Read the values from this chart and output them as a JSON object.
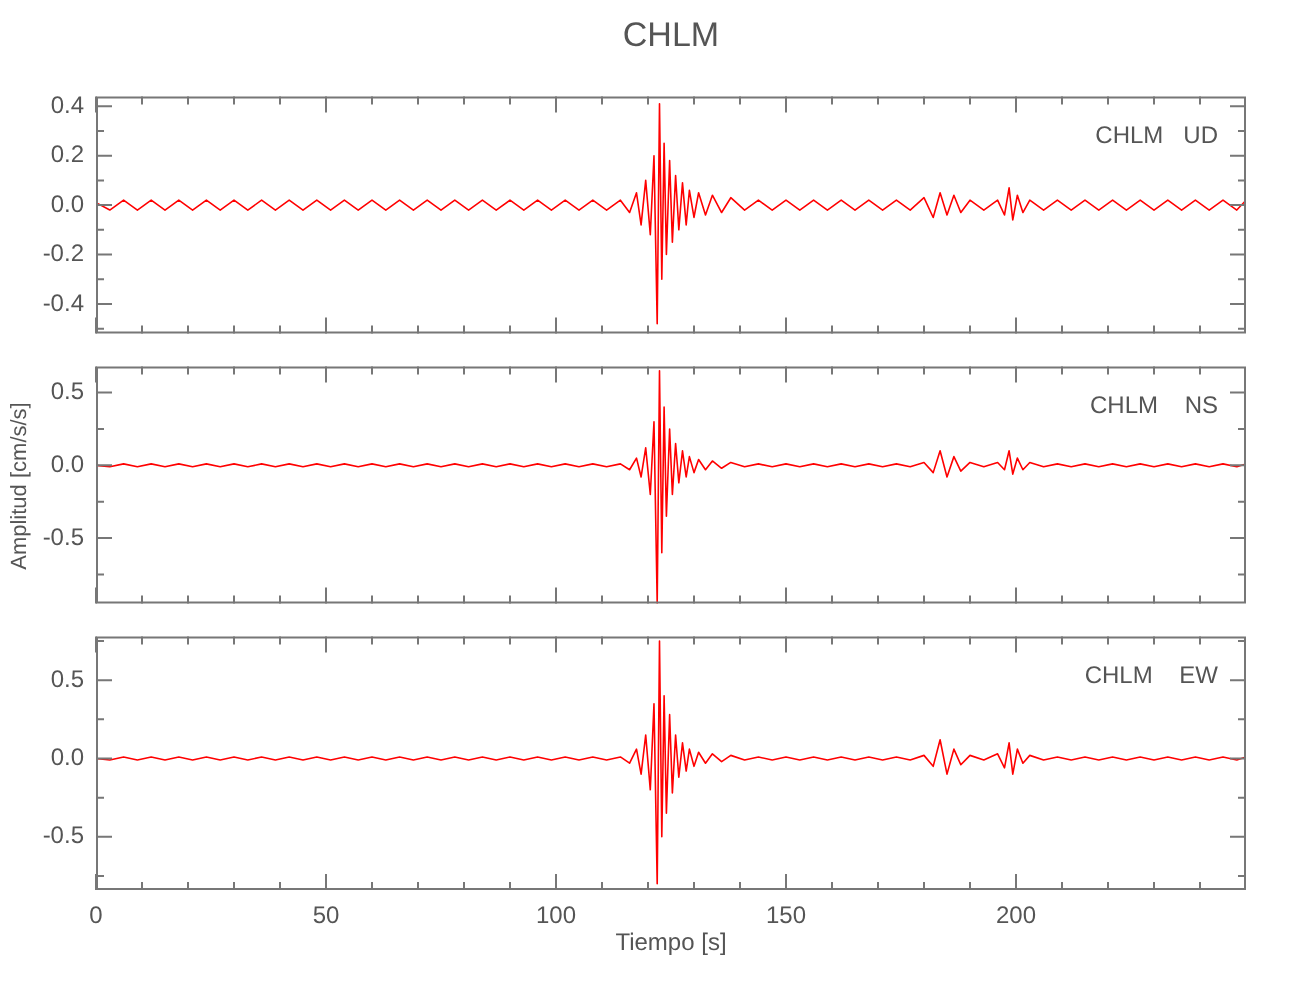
{
  "chart_data": [
    {
      "type": "line",
      "title": "CHLM",
      "annotations": [
        "CHLM   UD"
      ],
      "color": "#ff0000",
      "tick_labels": "y",
      "xlim": [
        0,
        250
      ],
      "xticks": [
        0,
        {
          "value": 10,
          "label": null
        },
        {
          "value": 20,
          "label": null
        },
        {
          "value": 30,
          "label": null
        },
        {
          "value": 40,
          "label": null
        },
        50,
        {
          "value": 60,
          "label": null
        },
        {
          "value": 70,
          "label": null
        },
        {
          "value": 80,
          "label": null
        },
        {
          "value": 90,
          "label": null
        },
        100,
        {
          "value": 110,
          "label": null
        },
        {
          "value": 120,
          "label": null
        },
        {
          "value": 130,
          "label": null
        },
        {
          "value": 140,
          "label": null
        },
        150,
        {
          "value": 160,
          "label": null
        },
        {
          "value": 170,
          "label": null
        },
        {
          "value": 180,
          "label": null
        },
        {
          "value": 190,
          "label": null
        },
        200,
        {
          "value": 210,
          "label": null
        },
        {
          "value": 220,
          "label": null
        },
        {
          "value": 230,
          "label": null
        },
        {
          "value": 240,
          "label": null
        }
      ],
      "ylim": [
        -0.52,
        0.44
      ],
      "yticks": [
        {
          "value": -0.5,
          "label": null
        },
        -0.4,
        {
          "value": -0.3,
          "label": null
        },
        -0.2,
        {
          "value": -0.1,
          "label": null
        },
        {
          "value": 0,
          "label": "0.0"
        },
        {
          "value": 0.1,
          "label": null
        },
        0.2,
        {
          "value": 0.3,
          "label": null
        },
        0.4
      ],
      "x": [
        0,
        3,
        6,
        9,
        12,
        15,
        18,
        21,
        24,
        27,
        30,
        33,
        36,
        39,
        42,
        45,
        48,
        51,
        54,
        57,
        60,
        63,
        66,
        69,
        72,
        75,
        78,
        81,
        84,
        87,
        90,
        93,
        96,
        99,
        102,
        105,
        108,
        111,
        114,
        116,
        117.5,
        118.5,
        119.5,
        120.5,
        121.3,
        122,
        122.5,
        123,
        123.5,
        124,
        124.7,
        125.3,
        126,
        126.7,
        127.5,
        128.3,
        129,
        130,
        131,
        132.5,
        134,
        136,
        138,
        141,
        144,
        147,
        150,
        153,
        156,
        159,
        162,
        165,
        168,
        171,
        174,
        177,
        180,
        182,
        183.5,
        185,
        186.5,
        188,
        190,
        193,
        196,
        197.5,
        198.5,
        199.3,
        200.3,
        201.5,
        203,
        206,
        209,
        212,
        215,
        218,
        221,
        224,
        227,
        230,
        233,
        236,
        239,
        242,
        245,
        248,
        250
      ],
      "values": [
        0.01,
        -0.02,
        0.02,
        -0.02,
        0.02,
        -0.02,
        0.02,
        -0.02,
        0.02,
        -0.02,
        0.02,
        -0.02,
        0.02,
        -0.02,
        0.02,
        -0.02,
        0.02,
        -0.02,
        0.02,
        -0.02,
        0.02,
        -0.02,
        0.02,
        -0.02,
        0.02,
        -0.02,
        0.02,
        -0.02,
        0.02,
        -0.02,
        0.02,
        -0.02,
        0.02,
        -0.02,
        0.02,
        -0.02,
        0.02,
        -0.02,
        0.02,
        -0.03,
        0.05,
        -0.08,
        0.1,
        -0.12,
        0.2,
        -0.48,
        0.41,
        -0.3,
        0.25,
        -0.2,
        0.18,
        -0.15,
        0.12,
        -0.1,
        0.09,
        -0.08,
        0.06,
        -0.05,
        0.05,
        -0.04,
        0.04,
        -0.03,
        0.03,
        -0.02,
        0.02,
        -0.02,
        0.02,
        -0.02,
        0.02,
        -0.02,
        0.02,
        -0.02,
        0.02,
        -0.02,
        0.02,
        -0.02,
        0.03,
        -0.05,
        0.05,
        -0.04,
        0.04,
        -0.03,
        0.02,
        -0.02,
        0.02,
        -0.04,
        0.07,
        -0.06,
        0.04,
        -0.03,
        0.02,
        -0.02,
        0.02,
        -0.02,
        0.02,
        -0.02,
        0.02,
        -0.02,
        0.02,
        -0.02,
        0.02,
        -0.02,
        0.02,
        -0.02,
        0.02,
        -0.02,
        0.02
      ]
    },
    {
      "type": "line",
      "ylabel": "Amplitud  [cm/s/s]",
      "annotations": [
        "CHLM    NS"
      ],
      "color": "#ff0000",
      "tick_labels": "y",
      "xlim": [
        0,
        250
      ],
      "xticks": [
        0,
        {
          "value": 10,
          "label": null
        },
        {
          "value": 20,
          "label": null
        },
        {
          "value": 30,
          "label": null
        },
        {
          "value": 40,
          "label": null
        },
        50,
        {
          "value": 60,
          "label": null
        },
        {
          "value": 70,
          "label": null
        },
        {
          "value": 80,
          "label": null
        },
        {
          "value": 90,
          "label": null
        },
        100,
        {
          "value": 110,
          "label": null
        },
        {
          "value": 120,
          "label": null
        },
        {
          "value": 130,
          "label": null
        },
        {
          "value": 140,
          "label": null
        },
        150,
        {
          "value": 160,
          "label": null
        },
        {
          "value": 170,
          "label": null
        },
        {
          "value": 180,
          "label": null
        },
        {
          "value": 190,
          "label": null
        },
        200,
        {
          "value": 210,
          "label": null
        },
        {
          "value": 220,
          "label": null
        },
        {
          "value": 230,
          "label": null
        },
        {
          "value": 240,
          "label": null
        }
      ],
      "ylim": [
        -0.95,
        0.68
      ],
      "yticks": [
        {
          "value": -0.75,
          "label": null
        },
        -0.5,
        {
          "value": -0.25,
          "label": null
        },
        {
          "value": 0,
          "label": "0.0"
        },
        {
          "value": 0.25,
          "label": null
        },
        0.5
      ],
      "x": [
        0,
        3,
        6,
        9,
        12,
        15,
        18,
        21,
        24,
        27,
        30,
        33,
        36,
        39,
        42,
        45,
        48,
        51,
        54,
        57,
        60,
        63,
        66,
        69,
        72,
        75,
        78,
        81,
        84,
        87,
        90,
        93,
        96,
        99,
        102,
        105,
        108,
        111,
        114,
        116,
        117.5,
        118.5,
        119.5,
        120.5,
        121.3,
        122,
        122.5,
        123,
        123.5,
        124,
        124.7,
        125.3,
        126,
        126.7,
        127.5,
        128.3,
        129,
        130,
        131,
        132.5,
        134,
        136,
        138,
        141,
        144,
        147,
        150,
        153,
        156,
        159,
        162,
        165,
        168,
        171,
        174,
        177,
        180,
        182,
        183.5,
        185,
        186.5,
        188,
        190,
        193,
        196,
        197.5,
        198.5,
        199.3,
        200.3,
        201.5,
        203,
        206,
        209,
        212,
        215,
        218,
        221,
        224,
        227,
        230,
        233,
        236,
        239,
        242,
        245,
        248,
        250
      ],
      "values": [
        0,
        -0.01,
        0.01,
        -0.01,
        0.01,
        -0.01,
        0.01,
        -0.01,
        0.01,
        -0.01,
        0.01,
        -0.01,
        0.01,
        -0.01,
        0.01,
        -0.01,
        0.01,
        -0.01,
        0.01,
        -0.01,
        0.01,
        -0.01,
        0.01,
        -0.01,
        0.01,
        -0.01,
        0.01,
        -0.01,
        0.01,
        -0.01,
        0.01,
        -0.01,
        0.01,
        -0.01,
        0.01,
        -0.01,
        0.01,
        -0.01,
        0.01,
        -0.03,
        0.05,
        -0.08,
        0.12,
        -0.2,
        0.3,
        -0.95,
        0.65,
        -0.6,
        0.4,
        -0.35,
        0.25,
        -0.2,
        0.15,
        -0.12,
        0.1,
        -0.08,
        0.06,
        -0.05,
        0.04,
        -0.03,
        0.03,
        -0.02,
        0.02,
        -0.01,
        0.01,
        -0.01,
        0.01,
        -0.01,
        0.01,
        -0.01,
        0.01,
        -0.01,
        0.01,
        -0.01,
        0.01,
        -0.01,
        0.02,
        -0.05,
        0.1,
        -0.08,
        0.06,
        -0.04,
        0.02,
        -0.01,
        0.02,
        -0.03,
        0.1,
        -0.06,
        0.05,
        -0.03,
        0.02,
        -0.01,
        0.01,
        -0.01,
        0.01,
        -0.01,
        0.01,
        -0.01,
        0.01,
        -0.01,
        0.01,
        -0.01,
        0.01,
        -0.01,
        0.01,
        -0.01,
        0.01
      ]
    },
    {
      "type": "line",
      "xlabel": "Tiempo  [s]",
      "annotations": [
        "CHLM    EW"
      ],
      "color": "#ff0000",
      "xlim": [
        0,
        250
      ],
      "xticks": [
        0,
        {
          "value": 10,
          "label": null
        },
        {
          "value": 20,
          "label": null
        },
        {
          "value": 30,
          "label": null
        },
        {
          "value": 40,
          "label": null
        },
        50,
        {
          "value": 60,
          "label": null
        },
        {
          "value": 70,
          "label": null
        },
        {
          "value": 80,
          "label": null
        },
        {
          "value": 90,
          "label": null
        },
        100,
        {
          "value": 110,
          "label": null
        },
        {
          "value": 120,
          "label": null
        },
        {
          "value": 130,
          "label": null
        },
        {
          "value": 140,
          "label": null
        },
        150,
        {
          "value": 160,
          "label": null
        },
        {
          "value": 170,
          "label": null
        },
        {
          "value": 180,
          "label": null
        },
        {
          "value": 190,
          "label": null
        },
        200,
        {
          "value": 210,
          "label": null
        },
        {
          "value": 220,
          "label": null
        },
        {
          "value": 230,
          "label": null
        },
        {
          "value": 240,
          "label": null
        }
      ],
      "ylim": [
        -0.84,
        0.78
      ],
      "yticks": [
        {
          "value": -0.75,
          "label": null
        },
        -0.5,
        {
          "value": -0.25,
          "label": null
        },
        {
          "value": 0,
          "label": "0.0"
        },
        {
          "value": 0.25,
          "label": null
        },
        0.5,
        {
          "value": 0.75,
          "label": null
        }
      ],
      "x": [
        0,
        3,
        6,
        9,
        12,
        15,
        18,
        21,
        24,
        27,
        30,
        33,
        36,
        39,
        42,
        45,
        48,
        51,
        54,
        57,
        60,
        63,
        66,
        69,
        72,
        75,
        78,
        81,
        84,
        87,
        90,
        93,
        96,
        99,
        102,
        105,
        108,
        111,
        114,
        116,
        117.5,
        118.5,
        119.5,
        120.5,
        121.3,
        122,
        122.5,
        123,
        123.5,
        124,
        124.7,
        125.3,
        126,
        126.7,
        127.5,
        128.3,
        129,
        130,
        131,
        132.5,
        134,
        136,
        138,
        141,
        144,
        147,
        150,
        153,
        156,
        159,
        162,
        165,
        168,
        171,
        174,
        177,
        180,
        182,
        183.5,
        185,
        186.5,
        188,
        190,
        193,
        196,
        197.5,
        198.5,
        199.3,
        200.3,
        201.5,
        203,
        206,
        209,
        212,
        215,
        218,
        221,
        224,
        227,
        230,
        233,
        236,
        239,
        242,
        245,
        248,
        250
      ],
      "values": [
        0,
        -0.01,
        0.01,
        -0.01,
        0.01,
        -0.01,
        0.01,
        -0.01,
        0.01,
        -0.01,
        0.01,
        -0.01,
        0.01,
        -0.01,
        0.01,
        -0.01,
        0.01,
        -0.01,
        0.01,
        -0.01,
        0.01,
        -0.01,
        0.01,
        -0.01,
        0.01,
        -0.01,
        0.01,
        -0.01,
        0.01,
        -0.01,
        0.01,
        -0.01,
        0.01,
        -0.01,
        0.01,
        -0.01,
        0.01,
        -0.01,
        0.01,
        -0.03,
        0.06,
        -0.1,
        0.15,
        -0.2,
        0.35,
        -0.8,
        0.75,
        -0.5,
        0.4,
        -0.35,
        0.28,
        -0.22,
        0.15,
        -0.12,
        0.1,
        -0.08,
        0.06,
        -0.05,
        0.04,
        -0.03,
        0.03,
        -0.02,
        0.02,
        -0.01,
        0.01,
        -0.01,
        0.01,
        -0.01,
        0.01,
        -0.01,
        0.01,
        -0.01,
        0.01,
        -0.01,
        0.01,
        -0.01,
        0.02,
        -0.05,
        0.12,
        -0.1,
        0.06,
        -0.04,
        0.02,
        -0.01,
        0.03,
        -0.06,
        0.1,
        -0.1,
        0.06,
        -0.03,
        0.02,
        -0.01,
        0.01,
        -0.01,
        0.01,
        -0.01,
        0.01,
        -0.01,
        0.01,
        -0.01,
        0.01,
        -0.01,
        0.01,
        -0.01,
        0.01,
        -0.01,
        0.01
      ]
    }
  ]
}
